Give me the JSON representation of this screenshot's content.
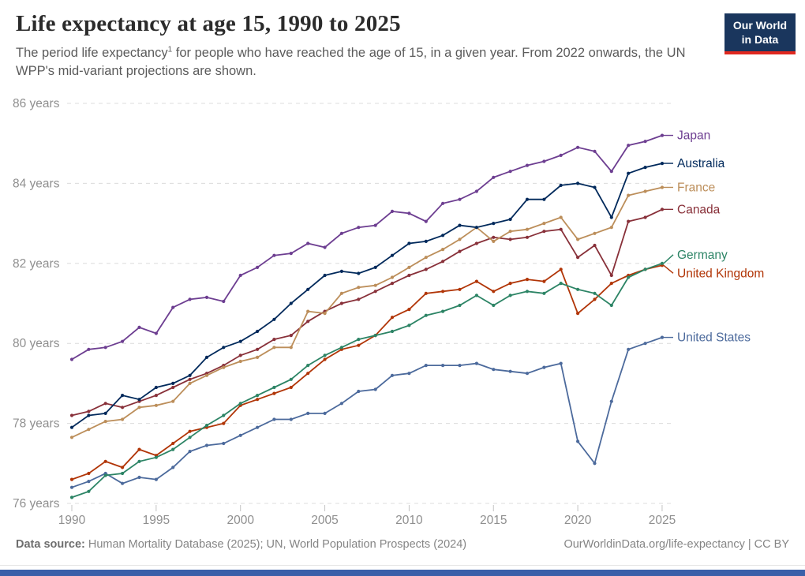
{
  "header": {
    "title": "Life expectancy at age 15, 1990 to 2025",
    "subtitle_prefix": "The period life expectancy",
    "subtitle_sup": "1",
    "subtitle_suffix": " for people who have reached the age of 15, in a given year. From 2022 onwards, the UN WPP's mid-variant projections are shown."
  },
  "logo": {
    "line1": "Our World",
    "line2": "in Data",
    "bg_color": "#1a365d",
    "accent_color": "#e0281f"
  },
  "footer": {
    "source_label": "Data source:",
    "source_text": " Human Mortality Database (2025); UN, World Population Prospects (2024)",
    "credit": "OurWorldinData.org/life-expectancy | CC BY",
    "bottom_bar_color": "#3a5fa9"
  },
  "chart_data": {
    "type": "line",
    "title": "Life expectancy at age 15, 1990 to 2025",
    "x_start_year": 1990,
    "x_ticks": [
      1990,
      1995,
      2000,
      2005,
      2010,
      2015,
      2020,
      2025
    ],
    "y_ticks": [
      {
        "value": 86,
        "label": "86 years"
      },
      {
        "value": 84,
        "label": "84 years"
      },
      {
        "value": 82,
        "label": "82 years"
      },
      {
        "value": 80,
        "label": "80 years"
      },
      {
        "value": 78,
        "label": "78 years"
      },
      {
        "value": 76,
        "label": "76 years"
      }
    ],
    "ylim": [
      76,
      86
    ],
    "xlim": [
      1990,
      2025
    ],
    "grid": "dashed-horizontal",
    "legend_position": "right-end-labels",
    "note": "From 2022 onwards values are UN WPP mid-variant projections",
    "series": [
      {
        "name": "Japan",
        "color": "#6d3e91",
        "label_offset": 0,
        "values": [
          79.6,
          79.85,
          79.9,
          80.05,
          80.4,
          80.25,
          80.9,
          81.1,
          81.15,
          81.05,
          81.7,
          81.9,
          82.2,
          82.25,
          82.5,
          82.4,
          82.75,
          82.9,
          82.95,
          83.3,
          83.25,
          83.05,
          83.5,
          83.6,
          83.8,
          84.15,
          84.3,
          84.45,
          84.55,
          84.7,
          84.9,
          84.8,
          84.3,
          84.95,
          85.05,
          85.2
        ]
      },
      {
        "name": "Australia",
        "color": "#00295b",
        "label_offset": 0,
        "values": [
          77.9,
          78.2,
          78.25,
          78.7,
          78.6,
          78.9,
          79.0,
          79.2,
          79.65,
          79.9,
          80.05,
          80.3,
          80.6,
          81.0,
          81.35,
          81.7,
          81.8,
          81.75,
          81.9,
          82.2,
          82.5,
          82.55,
          82.7,
          82.95,
          82.9,
          83.0,
          83.1,
          83.6,
          83.6,
          83.95,
          84.0,
          83.9,
          83.15,
          84.25,
          84.4,
          84.5
        ]
      },
      {
        "name": "France",
        "color": "#bc8e5a",
        "label_offset": 0,
        "values": [
          77.65,
          77.85,
          78.05,
          78.1,
          78.4,
          78.45,
          78.55,
          79.0,
          79.2,
          79.4,
          79.55,
          79.65,
          79.9,
          79.9,
          80.8,
          80.75,
          81.25,
          81.4,
          81.45,
          81.65,
          81.9,
          82.15,
          82.35,
          82.6,
          82.9,
          82.55,
          82.8,
          82.85,
          83.0,
          83.15,
          82.6,
          82.75,
          82.9,
          83.7,
          83.8,
          83.9
        ]
      },
      {
        "name": "Canada",
        "color": "#883039",
        "label_offset": 0,
        "values": [
          78.2,
          78.3,
          78.5,
          78.4,
          78.55,
          78.7,
          78.9,
          79.1,
          79.25,
          79.45,
          79.7,
          79.85,
          80.1,
          80.2,
          80.55,
          80.8,
          81.0,
          81.1,
          81.3,
          81.5,
          81.7,
          81.85,
          82.05,
          82.3,
          82.5,
          82.65,
          82.6,
          82.65,
          82.8,
          82.85,
          82.15,
          82.45,
          81.7,
          83.05,
          83.15,
          83.35
        ]
      },
      {
        "name": "Germany",
        "color": "#2c8465",
        "label_offset": -11,
        "values": [
          76.15,
          76.3,
          76.7,
          76.75,
          77.05,
          77.15,
          77.35,
          77.65,
          77.95,
          78.2,
          78.5,
          78.7,
          78.9,
          79.1,
          79.45,
          79.7,
          79.9,
          80.1,
          80.2,
          80.3,
          80.45,
          80.7,
          80.8,
          80.95,
          81.2,
          80.95,
          81.2,
          81.3,
          81.25,
          81.5,
          81.35,
          81.25,
          80.95,
          81.65,
          81.85,
          82.0
        ]
      },
      {
        "name": "United Kingdom",
        "color": "#b13507",
        "label_offset": 10,
        "values": [
          76.6,
          76.75,
          77.05,
          76.9,
          77.35,
          77.2,
          77.5,
          77.8,
          77.9,
          78.0,
          78.45,
          78.6,
          78.75,
          78.9,
          79.25,
          79.6,
          79.85,
          79.95,
          80.2,
          80.65,
          80.85,
          81.25,
          81.3,
          81.35,
          81.55,
          81.3,
          81.5,
          81.6,
          81.55,
          81.85,
          80.75,
          81.1,
          81.5,
          81.7,
          81.85,
          81.95
        ]
      },
      {
        "name": "United States",
        "color": "#4c6a9c",
        "label_offset": 0,
        "values": [
          76.4,
          76.55,
          76.75,
          76.5,
          76.65,
          76.6,
          76.9,
          77.3,
          77.45,
          77.5,
          77.7,
          77.9,
          78.1,
          78.1,
          78.25,
          78.25,
          78.5,
          78.8,
          78.85,
          79.2,
          79.25,
          79.45,
          79.45,
          79.45,
          79.5,
          79.35,
          79.3,
          79.25,
          79.4,
          79.5,
          77.55,
          77.0,
          78.55,
          79.85,
          80.0,
          80.15
        ]
      }
    ]
  }
}
